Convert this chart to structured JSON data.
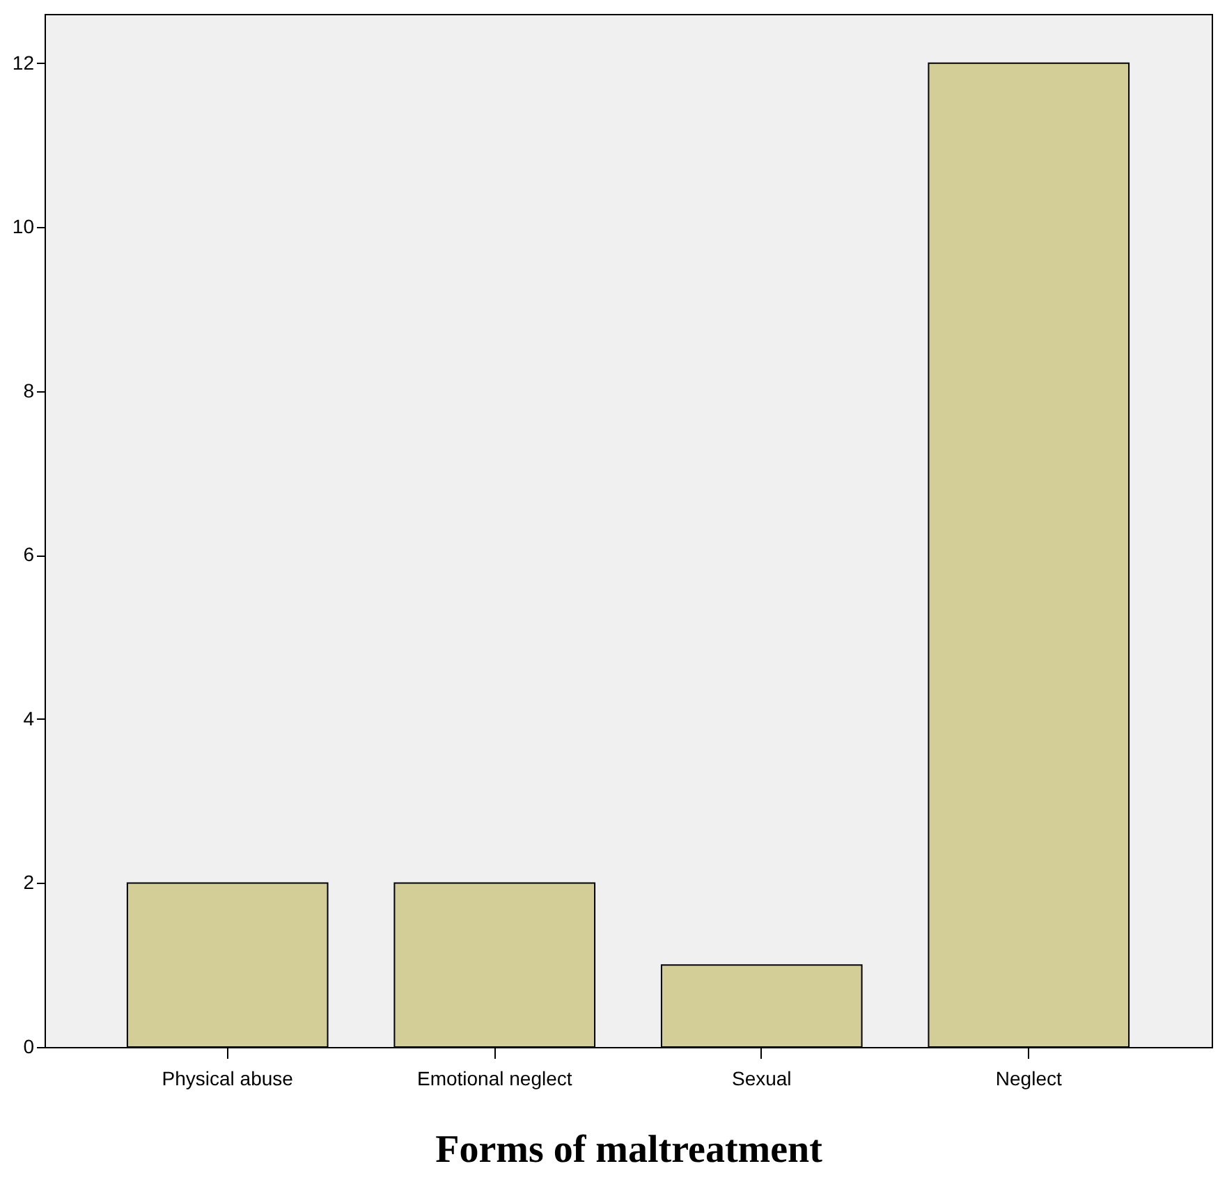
{
  "chart_data": {
    "type": "bar",
    "xlabel": "Forms of maltreatment",
    "categories": [
      "Physical abuse",
      "Emotional neglect",
      "Sexual",
      "Neglect"
    ],
    "values": [
      2,
      2,
      1,
      12
    ],
    "color": "#d3ce97",
    "ylim": [
      0,
      12.6
    ],
    "yticks": [
      0,
      2,
      4,
      6,
      8,
      10,
      12
    ]
  }
}
